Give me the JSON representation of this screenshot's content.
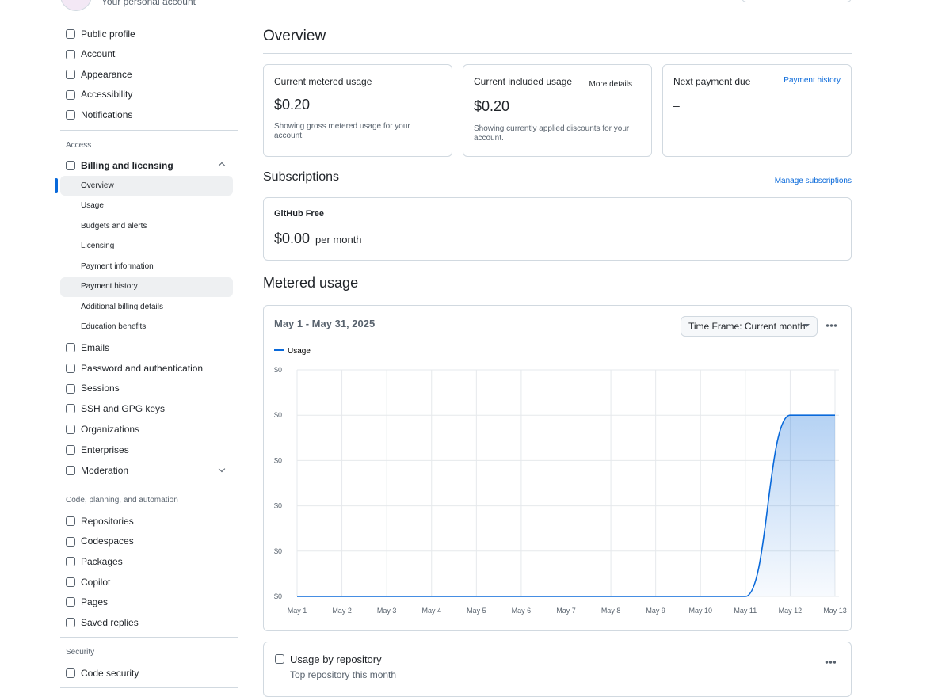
{
  "header": {
    "account_subtitle": "Your personal account"
  },
  "sidebar": {
    "top_items": [
      "Public profile",
      "Account",
      "Appearance",
      "Accessibility",
      "Notifications"
    ],
    "access_heading": "Access",
    "billing": {
      "label": "Billing and licensing",
      "children": [
        "Overview",
        "Usage",
        "Budgets and alerts",
        "Licensing",
        "Payment information",
        "Payment history",
        "Additional billing details",
        "Education benefits"
      ]
    },
    "access_items": [
      "Emails",
      "Password and authentication",
      "Sessions",
      "SSH and GPG keys",
      "Organizations",
      "Enterprises",
      "Moderation"
    ],
    "code_heading": "Code, planning, and automation",
    "code_items": [
      "Repositories",
      "Codespaces",
      "Packages",
      "Copilot",
      "Pages",
      "Saved replies"
    ],
    "security_heading": "Security",
    "security_items": [
      "Code security"
    ]
  },
  "main": {
    "overview_title": "Overview",
    "cards": [
      {
        "title": "Current metered usage",
        "amount": "$0.20",
        "note": "Showing gross metered usage for your account."
      },
      {
        "title": "Current included usage",
        "action": "More details",
        "amount": "$0.20",
        "note": "Showing currently applied discounts for your account."
      },
      {
        "title": "Next payment due",
        "action": "Payment history",
        "amount": "–"
      }
    ],
    "subscriptions": {
      "title": "Subscriptions",
      "manage": "Manage subscriptions",
      "plan": "GitHub Free",
      "amount": "$0.00",
      "period": "per month"
    },
    "metered": {
      "title": "Metered usage",
      "range": "May 1 - May 31, 2025",
      "timeframe": "Time Frame: Current month"
    },
    "repo": {
      "title": "Usage by repository",
      "subtitle": "Top repository this month"
    }
  },
  "chart_data": {
    "type": "area",
    "categories": [
      "May 1",
      "May 2",
      "May 3",
      "May 4",
      "May 5",
      "May 6",
      "May 7",
      "May 8",
      "May 9",
      "May 10",
      "May 11",
      "May 12",
      "May 13"
    ],
    "series": [
      {
        "name": "Usage",
        "color": "#0969da",
        "values": [
          0,
          0,
          0,
          0,
          0,
          0,
          0,
          0,
          0,
          0,
          0,
          0.2,
          0.2
        ]
      }
    ],
    "ylim": [
      0,
      0.25
    ],
    "yticks": [
      {
        "value": 0,
        "label": "$0"
      },
      {
        "value": 0.05,
        "label": "$0"
      },
      {
        "value": 0.1,
        "label": "$0"
      },
      {
        "value": 0.15,
        "label": "$0"
      },
      {
        "value": 0.2,
        "label": "$0"
      },
      {
        "value": 0.25,
        "label": "$0"
      }
    ],
    "grid": true,
    "legend": "top-left"
  }
}
